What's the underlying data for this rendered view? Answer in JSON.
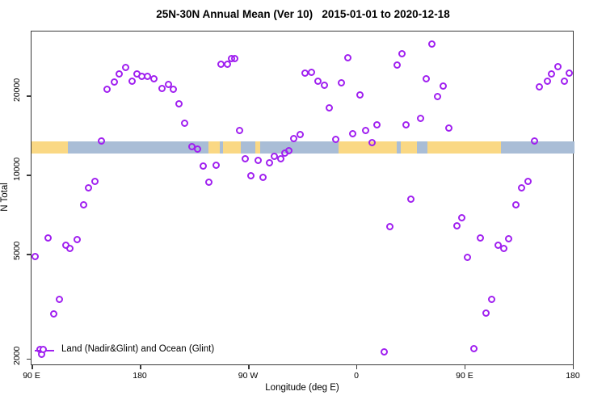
{
  "title": "25N-30N Annual Mean (Ver 10)   2015-01-01 to 2020-12-18",
  "chart_data": {
    "type": "scatter",
    "title": "25N-30N Annual Mean (Ver 10)   2015-01-01 to 2020-12-18",
    "xlabel": "Longitude (deg E)",
    "ylabel": "N Total",
    "grid": false,
    "x_axis": {
      "min": 89.3,
      "max": 540.7,
      "note": "longitude wraps eastward from 90E around the globe to 180",
      "ticks": [
        {
          "value": 90,
          "label": "90 E"
        },
        {
          "value": 180,
          "label": "180"
        },
        {
          "value": 270,
          "label": "90 W"
        },
        {
          "value": 360,
          "label": "0"
        },
        {
          "value": 450,
          "label": "90 E"
        },
        {
          "value": 540,
          "label": "180"
        }
      ]
    },
    "y_axis": {
      "scale": "log",
      "min": 1898,
      "max": 35470,
      "ticks": [
        {
          "value": 2000,
          "label": "2000"
        },
        {
          "value": 5000,
          "label": "5000"
        },
        {
          "value": 10000,
          "label": "10000"
        },
        {
          "value": 20000,
          "label": "20000"
        }
      ]
    },
    "legend": {
      "label": "Land (Nadir&Glint) and Ocean (Glint)",
      "marker": "open-circle",
      "marker_color": "#A020F0",
      "position": "bottom-left-inside"
    },
    "map_band": {
      "description": "land/ocean strip along 25N-30N drawn across plot",
      "y_top_value": 13550,
      "y_bottom_value": 12200,
      "land_color": "#FAD884",
      "ocean_color": "#A9BDD6",
      "segments": [
        {
          "from": 89.3,
          "to": 119.5,
          "surface": "land"
        },
        {
          "from": 119.5,
          "to": 236.7,
          "surface": "ocean"
        },
        {
          "from": 236.7,
          "to": 246.0,
          "surface": "land"
        },
        {
          "from": 246.0,
          "to": 248.7,
          "surface": "ocean"
        },
        {
          "from": 248.7,
          "to": 263.4,
          "surface": "land"
        },
        {
          "from": 263.4,
          "to": 275.5,
          "sursurface": "ocean",
          "surface": "ocean"
        },
        {
          "from": 275.5,
          "to": 279.5,
          "surface": "land"
        },
        {
          "from": 279.5,
          "to": 344.5,
          "surface": "ocean"
        },
        {
          "from": 344.5,
          "to": 392.7,
          "surface": "land"
        },
        {
          "from": 392.7,
          "to": 396.0,
          "surface": "ocean"
        },
        {
          "from": 396.0,
          "to": 409.5,
          "surface": "land"
        },
        {
          "from": 409.5,
          "to": 418.2,
          "surface": "ocean"
        },
        {
          "from": 418.2,
          "to": 479.8,
          "surface": "land"
        },
        {
          "from": 479.8,
          "to": 540.7,
          "surface": "ocean"
        }
      ]
    },
    "series": [
      {
        "name": "Land (Nadir&Glint) and Ocean (Glint)",
        "marker": "open-circle",
        "color": "#A020F0",
        "points": [
          {
            "lon": 152.5,
            "n": 21400
          },
          {
            "lon": 158.0,
            "n": 22800
          },
          {
            "lon": 162.3,
            "n": 24500
          },
          {
            "lon": 167.5,
            "n": 25800
          },
          {
            "lon": 172.8,
            "n": 22900
          },
          {
            "lon": 176.8,
            "n": 24400
          },
          {
            "lon": 181.3,
            "n": 24000
          },
          {
            "lon": 185.5,
            "n": 23900
          },
          {
            "lon": 190.9,
            "n": 23500
          },
          {
            "lon": 198.0,
            "n": 21500
          },
          {
            "lon": 203.0,
            "n": 22300
          },
          {
            "lon": 207.0,
            "n": 21300
          },
          {
            "lon": 212.3,
            "n": 18800
          },
          {
            "lon": 217.0,
            "n": 15900
          },
          {
            "lon": 147.8,
            "n": 13550
          },
          {
            "lon": 247.2,
            "n": 26600
          },
          {
            "lon": 252.5,
            "n": 26600
          },
          {
            "lon": 255.4,
            "n": 27950
          },
          {
            "lon": 258.5,
            "n": 28000
          },
          {
            "lon": 317.0,
            "n": 24600
          },
          {
            "lon": 322.4,
            "n": 24800
          },
          {
            "lon": 327.3,
            "n": 22900
          },
          {
            "lon": 333.1,
            "n": 22200
          },
          {
            "lon": 347.2,
            "n": 22650
          },
          {
            "lon": 352.5,
            "n": 28100
          },
          {
            "lon": 362.8,
            "n": 20300
          },
          {
            "lon": 336.9,
            "n": 18200
          },
          {
            "lon": 393.3,
            "n": 26500
          },
          {
            "lon": 397.4,
            "n": 29100
          },
          {
            "lon": 262.6,
            "n": 14900
          },
          {
            "lon": 312.5,
            "n": 14400
          },
          {
            "lon": 307.4,
            "n": 13900
          },
          {
            "lon": 342.3,
            "n": 13800
          },
          {
            "lon": 356.5,
            "n": 14500
          },
          {
            "lon": 367.2,
            "n": 14900
          },
          {
            "lon": 376.8,
            "n": 15700
          },
          {
            "lon": 372.4,
            "n": 13400
          },
          {
            "lon": 422.2,
            "n": 31700
          },
          {
            "lon": 417.7,
            "n": 23500
          },
          {
            "lon": 431.7,
            "n": 21900
          },
          {
            "lon": 427.1,
            "n": 20100
          },
          {
            "lon": 412.6,
            "n": 16600
          },
          {
            "lon": 400.9,
            "n": 15700
          },
          {
            "lon": 436.7,
            "n": 15200
          },
          {
            "lon": 511.4,
            "n": 21800
          },
          {
            "lon": 518.4,
            "n": 22900
          },
          {
            "lon": 521.5,
            "n": 24500
          },
          {
            "lon": 527.1,
            "n": 26100
          },
          {
            "lon": 532.2,
            "n": 22900
          },
          {
            "lon": 536.5,
            "n": 24600
          },
          {
            "lon": 507.7,
            "n": 13570
          },
          {
            "lon": 222.6,
            "n": 12900
          },
          {
            "lon": 227.5,
            "n": 12700
          },
          {
            "lon": 232.4,
            "n": 10900
          },
          {
            "lon": 242.9,
            "n": 10950
          },
          {
            "lon": 236.7,
            "n": 9500
          },
          {
            "lon": 142.2,
            "n": 9520
          },
          {
            "lon": 136.9,
            "n": 9010
          },
          {
            "lon": 132.6,
            "n": 7790
          },
          {
            "lon": 103.4,
            "n": 5800
          },
          {
            "lon": 117.9,
            "n": 5470
          },
          {
            "lon": 121.3,
            "n": 5290
          },
          {
            "lon": 127.3,
            "n": 5720
          },
          {
            "lon": 92.5,
            "n": 4950
          },
          {
            "lon": 303.2,
            "n": 12450
          },
          {
            "lon": 267.0,
            "n": 11630
          },
          {
            "lon": 277.7,
            "n": 11440
          },
          {
            "lon": 287.1,
            "n": 11230
          },
          {
            "lon": 291.6,
            "n": 11870
          },
          {
            "lon": 296.5,
            "n": 11630
          },
          {
            "lon": 300.1,
            "n": 12210
          },
          {
            "lon": 271.9,
            "n": 10020
          },
          {
            "lon": 282.2,
            "n": 9910
          },
          {
            "lon": 405.0,
            "n": 8180
          },
          {
            "lon": 387.5,
            "n": 6440
          },
          {
            "lon": 501.9,
            "n": 9560
          },
          {
            "lon": 497.0,
            "n": 9040
          },
          {
            "lon": 492.0,
            "n": 7790
          },
          {
            "lon": 447.4,
            "n": 6960
          },
          {
            "lon": 442.9,
            "n": 6480
          },
          {
            "lon": 462.3,
            "n": 5810
          },
          {
            "lon": 485.8,
            "n": 5760
          },
          {
            "lon": 477.3,
            "n": 5470
          },
          {
            "lon": 482.2,
            "n": 5300
          },
          {
            "lon": 451.6,
            "n": 4900
          },
          {
            "lon": 112.6,
            "n": 3400
          },
          {
            "lon": 107.6,
            "n": 3000
          },
          {
            "lon": 96.2,
            "n": 2190
          },
          {
            "lon": 97.5,
            "n": 2100
          },
          {
            "lon": 382.7,
            "n": 2140
          },
          {
            "lon": 457.2,
            "n": 2210
          },
          {
            "lon": 472.2,
            "n": 3400
          },
          {
            "lon": 467.2,
            "n": 3020
          }
        ]
      }
    ]
  }
}
